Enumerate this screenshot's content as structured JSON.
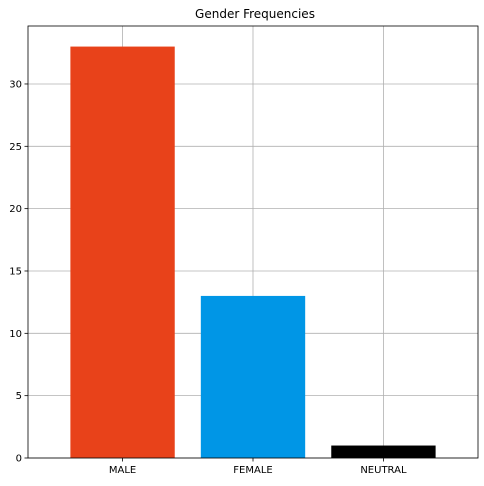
{
  "chart_data": {
    "type": "bar",
    "title": "Gender Frequencies",
    "xlabel": "",
    "ylabel": "",
    "categories": [
      "MALE",
      "FEMALE",
      "NEUTRAL"
    ],
    "values": [
      33,
      13,
      1
    ],
    "colors": [
      "#e8421a",
      "#0096e6",
      "#000000"
    ],
    "ylim": [
      0,
      34.65
    ],
    "yticks": [
      0,
      5,
      10,
      15,
      20,
      25,
      30
    ],
    "grid": true,
    "legend": "none"
  }
}
